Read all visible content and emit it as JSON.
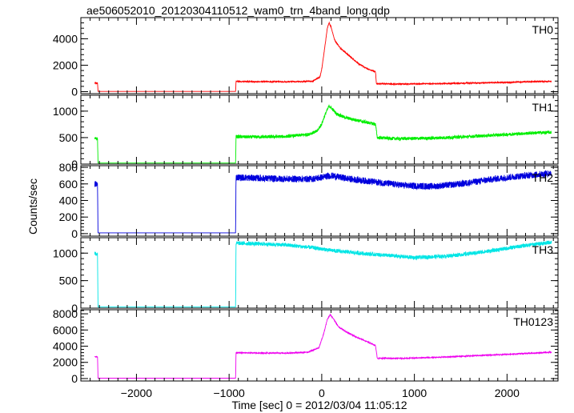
{
  "chart_data": {
    "type": "line",
    "title": "ae506052010_20120304110512_wam0_trn_4band_long.qdp",
    "xlabel": "Time [sec] 0 = 2012/03/04 11:05:12",
    "ylabel": "Counts/sec",
    "xlim": [
      -2600,
      2550
    ],
    "x_ticks": [
      -2000,
      -1000,
      0,
      1000,
      2000
    ],
    "x_tick_labels": [
      "−2000",
      "−1000",
      "0",
      "1000",
      "2000"
    ],
    "panels": [
      {
        "name": "TH0",
        "color": "#ff0000",
        "ylim": [
          -150,
          5600
        ],
        "y_ticks": [
          0,
          2000,
          4000
        ],
        "y_tick_labels": [
          "0",
          "2000",
          "4000"
        ],
        "noise": 40,
        "points": [
          [
            -2450,
            650
          ],
          [
            -2420,
            650
          ],
          [
            -2415,
            20
          ],
          [
            -930,
            20
          ],
          [
            -925,
            780
          ],
          [
            -800,
            760
          ],
          [
            -400,
            750
          ],
          [
            -100,
            780
          ],
          [
            -20,
            1100
          ],
          [
            0,
            1700
          ],
          [
            30,
            3200
          ],
          [
            60,
            4800
          ],
          [
            80,
            5200
          ],
          [
            100,
            4900
          ],
          [
            140,
            3900
          ],
          [
            200,
            3300
          ],
          [
            300,
            2700
          ],
          [
            400,
            2100
          ],
          [
            500,
            1700
          ],
          [
            580,
            1500
          ],
          [
            590,
            600
          ],
          [
            800,
            580
          ],
          [
            1200,
            600
          ],
          [
            1600,
            650
          ],
          [
            2000,
            700
          ],
          [
            2300,
            760
          ],
          [
            2480,
            780
          ]
        ]
      },
      {
        "name": "TH1",
        "color": "#00ee00",
        "ylim": [
          0,
          1300
        ],
        "y_ticks": [
          0,
          500,
          1000
        ],
        "y_tick_labels": [
          "0",
          "500",
          "1000"
        ],
        "noise": 30,
        "points": [
          [
            -2450,
            480
          ],
          [
            -2420,
            480
          ],
          [
            -2415,
            20
          ],
          [
            -930,
            20
          ],
          [
            -925,
            520
          ],
          [
            -800,
            510
          ],
          [
            -400,
            520
          ],
          [
            -150,
            560
          ],
          [
            -50,
            620
          ],
          [
            0,
            760
          ],
          [
            40,
            950
          ],
          [
            80,
            1100
          ],
          [
            110,
            1050
          ],
          [
            160,
            950
          ],
          [
            250,
            880
          ],
          [
            350,
            840
          ],
          [
            450,
            800
          ],
          [
            560,
            760
          ],
          [
            580,
            750
          ],
          [
            600,
            500
          ],
          [
            800,
            480
          ],
          [
            1200,
            490
          ],
          [
            1600,
            520
          ],
          [
            2000,
            560
          ],
          [
            2300,
            590
          ],
          [
            2480,
            600
          ]
        ]
      },
      {
        "name": "TH2",
        "color": "#0000dd",
        "ylim": [
          -30,
          820
        ],
        "y_ticks": [
          0,
          200,
          400,
          600,
          800
        ],
        "y_tick_labels": [
          "0",
          "200",
          "400",
          "600",
          "800"
        ],
        "noise": 40,
        "points": [
          [
            -2450,
            600
          ],
          [
            -2420,
            590
          ],
          [
            -2415,
            10
          ],
          [
            -930,
            10
          ],
          [
            -925,
            680
          ],
          [
            -700,
            670
          ],
          [
            -400,
            660
          ],
          [
            -100,
            660
          ],
          [
            0,
            680
          ],
          [
            100,
            700
          ],
          [
            300,
            660
          ],
          [
            600,
            620
          ],
          [
            900,
            580
          ],
          [
            1200,
            570
          ],
          [
            1500,
            600
          ],
          [
            1800,
            650
          ],
          [
            2100,
            690
          ],
          [
            2300,
            710
          ],
          [
            2480,
            730
          ]
        ]
      },
      {
        "name": "TH3",
        "color": "#00e5e5",
        "ylim": [
          0,
          1280
        ],
        "y_ticks": [
          0,
          500,
          1000
        ],
        "y_tick_labels": [
          "0",
          "500",
          "1000"
        ],
        "noise": 35,
        "points": [
          [
            -2450,
            1000
          ],
          [
            -2420,
            980
          ],
          [
            -2415,
            20
          ],
          [
            -930,
            20
          ],
          [
            -925,
            1180
          ],
          [
            -700,
            1170
          ],
          [
            -400,
            1150
          ],
          [
            -100,
            1100
          ],
          [
            100,
            1050
          ],
          [
            400,
            1000
          ],
          [
            700,
            960
          ],
          [
            1000,
            920
          ],
          [
            1300,
            940
          ],
          [
            1600,
            990
          ],
          [
            1900,
            1060
          ],
          [
            2200,
            1140
          ],
          [
            2480,
            1200
          ]
        ]
      },
      {
        "name": "TH0123",
        "color": "#ee00ee",
        "ylim": [
          -300,
          8500
        ],
        "y_ticks": [
          0,
          2000,
          4000,
          6000,
          8000
        ],
        "y_tick_labels": [
          "0",
          "2000",
          "4000",
          "6000",
          "8000"
        ],
        "noise": 60,
        "points": [
          [
            -2450,
            2700
          ],
          [
            -2420,
            2700
          ],
          [
            -2415,
            50
          ],
          [
            -930,
            50
          ],
          [
            -925,
            3200
          ],
          [
            -700,
            3150
          ],
          [
            -400,
            3150
          ],
          [
            -150,
            3250
          ],
          [
            -30,
            3800
          ],
          [
            20,
            5500
          ],
          [
            60,
            7300
          ],
          [
            90,
            7900
          ],
          [
            120,
            7500
          ],
          [
            180,
            6400
          ],
          [
            260,
            5800
          ],
          [
            360,
            5200
          ],
          [
            460,
            4700
          ],
          [
            560,
            4200
          ],
          [
            580,
            4050
          ],
          [
            600,
            2500
          ],
          [
            900,
            2500
          ],
          [
            1300,
            2650
          ],
          [
            1700,
            2850
          ],
          [
            2100,
            3050
          ],
          [
            2480,
            3250
          ]
        ]
      }
    ],
    "grid": false,
    "legend": "panel labels top-right"
  }
}
